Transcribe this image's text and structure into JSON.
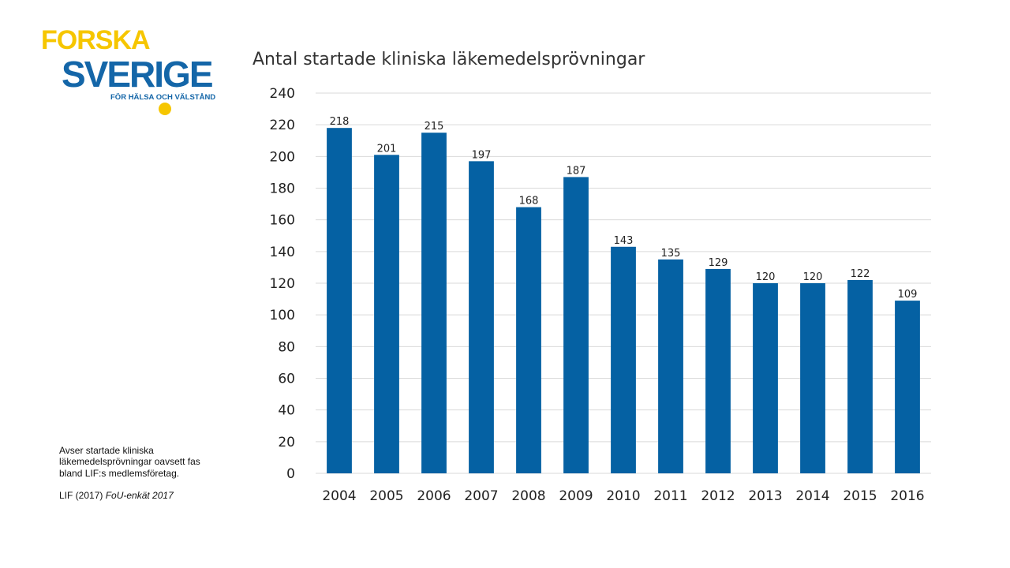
{
  "logo": {
    "line1": "FORSKA",
    "line2": "SVERIGE",
    "tagline": "FÖR HÄLSA OCH VÄLSTÅND",
    "colors": {
      "yellow": "#f6c600",
      "blue": "#1466a8"
    }
  },
  "note": {
    "text": "Avser startade kliniska läkemedelsprövningar oavsett fas bland LIF:s medlemsföretag.",
    "source_prefix": "LIF (2017)",
    "source_title": "FoU-enkät 2017"
  },
  "chart_data": {
    "type": "bar",
    "title": "Antal startade kliniska läkemedelsprövningar",
    "categories": [
      "2004",
      "2005",
      "2006",
      "2007",
      "2008",
      "2009",
      "2010",
      "2011",
      "2012",
      "2013",
      "2014",
      "2015",
      "2016"
    ],
    "values": [
      218,
      201,
      215,
      197,
      168,
      187,
      143,
      135,
      129,
      120,
      120,
      122,
      109
    ],
    "ylim": [
      0,
      240
    ],
    "yticks": [
      0,
      20,
      40,
      60,
      80,
      100,
      120,
      140,
      160,
      180,
      200,
      220,
      240
    ],
    "grid": true,
    "data_labels": true,
    "bar_color": "#0561a3",
    "grid_color": "#d9d9d9"
  }
}
